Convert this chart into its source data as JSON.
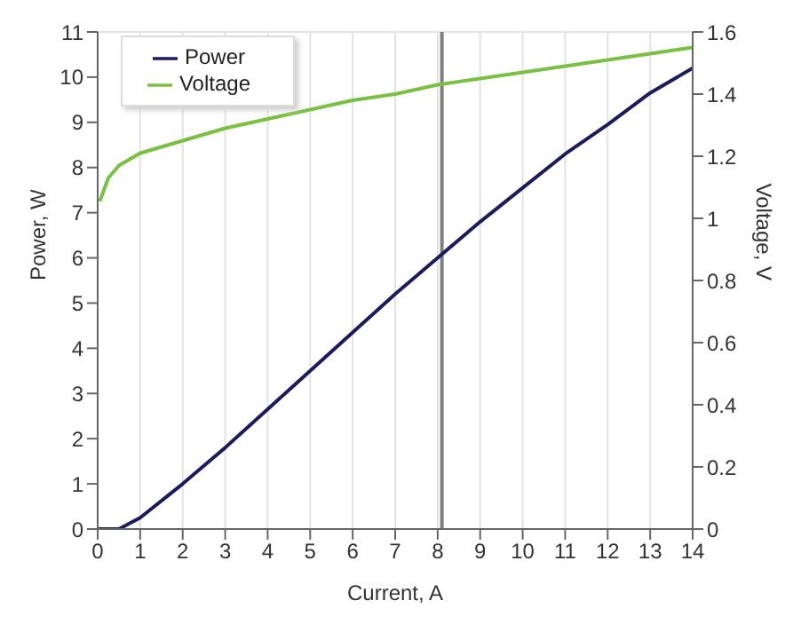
{
  "chart_data": {
    "type": "line",
    "xlabel": "Current, A",
    "ylabel": "Power, W",
    "y2label": "Voltage, V",
    "xlim": [
      0,
      14
    ],
    "xticks": [
      0,
      1,
      2,
      3,
      4,
      5,
      6,
      7,
      8,
      9,
      10,
      11,
      12,
      13,
      14
    ],
    "ylim": [
      0,
      11
    ],
    "yticks": [
      0,
      1,
      2,
      3,
      4,
      5,
      6,
      7,
      8,
      9,
      10,
      11
    ],
    "y2lim": [
      0,
      1.6
    ],
    "y2ticks": [
      0,
      0.2,
      0.4,
      0.6,
      0.8,
      1,
      1.2,
      1.4,
      1.6
    ],
    "grid": true,
    "legend": "top left",
    "marker": "none",
    "line_style": "solid",
    "ref_lines": [
      {
        "axis": "x",
        "value": 8.1,
        "color": "#808080"
      }
    ],
    "series": [
      {
        "name": "Power",
        "color": "#1c1c5c",
        "x": [
          0,
          0.5,
          1,
          2,
          3,
          4,
          5,
          6,
          7,
          8,
          9,
          10,
          11,
          12,
          13,
          14
        ],
        "values": [
          0,
          0,
          0.25,
          1.0,
          1.8,
          2.65,
          3.5,
          4.35,
          5.2,
          6.0,
          6.8,
          7.55,
          8.3,
          8.95,
          9.65,
          10.2
        ]
      },
      {
        "name": "Voltage",
        "color": "#7ac143",
        "axis": "y2",
        "x": [
          0.05,
          0.25,
          0.5,
          1,
          2,
          3,
          4,
          5,
          6,
          7,
          8,
          9,
          10,
          11,
          12,
          13,
          14
        ],
        "values": [
          1.055,
          1.13,
          1.17,
          1.21,
          1.25,
          1.29,
          1.32,
          1.35,
          1.38,
          1.4,
          1.43,
          1.45,
          1.47,
          1.49,
          1.51,
          1.53,
          1.55
        ]
      }
    ]
  }
}
